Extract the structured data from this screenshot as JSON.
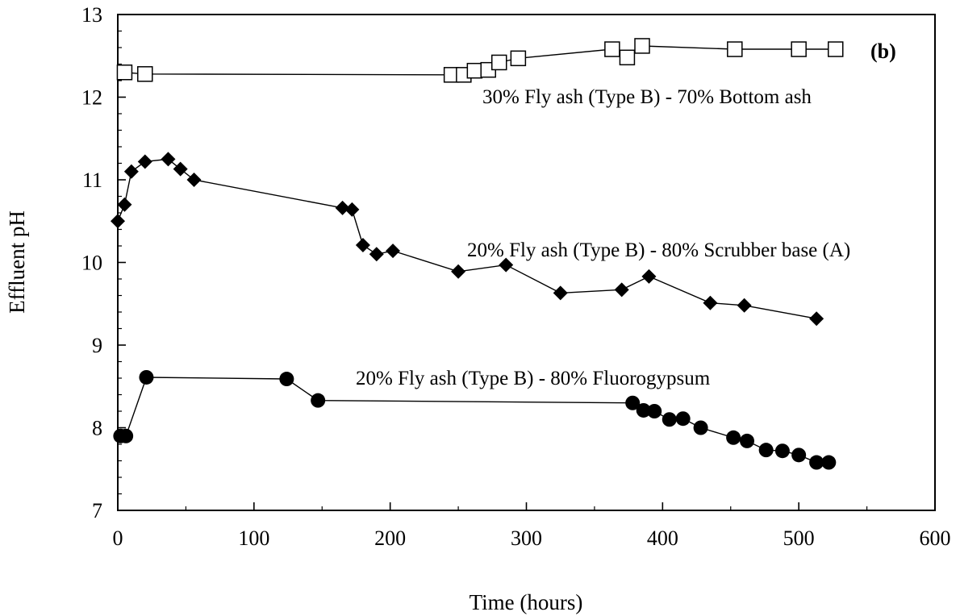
{
  "chart_data": {
    "type": "line",
    "panel_label": "(b)",
    "title": "",
    "xlabel": "Time (hours)",
    "ylabel": "Effluent  pH",
    "xlim": [
      0,
      600
    ],
    "ylim": [
      7,
      13
    ],
    "xticks": [
      0,
      100,
      200,
      300,
      400,
      500,
      600
    ],
    "yticks": [
      7,
      8,
      9,
      10,
      11,
      12,
      13
    ],
    "grid": false,
    "series": [
      {
        "name": "30% Fly ash (Type B) - 70% Bottom ash",
        "marker": "open-square",
        "x": [
          5,
          20,
          245,
          254,
          262,
          272,
          280,
          294,
          363,
          374,
          385,
          453,
          500,
          527
        ],
        "y": [
          12.3,
          12.28,
          12.27,
          12.27,
          12.32,
          12.33,
          12.42,
          12.47,
          12.58,
          12.48,
          12.62,
          12.58,
          12.58,
          12.58
        ]
      },
      {
        "name": "20% Fly ash (Type B) - 80% Scrubber base (A)",
        "marker": "filled-diamond",
        "x": [
          0,
          5,
          10,
          20,
          37,
          46,
          56,
          165,
          172,
          180,
          190,
          202,
          250,
          285,
          325,
          370,
          390,
          435,
          460,
          513
        ],
        "y": [
          10.5,
          10.7,
          11.1,
          11.22,
          11.25,
          11.13,
          11.0,
          10.66,
          10.64,
          10.21,
          10.1,
          10.14,
          9.89,
          9.97,
          9.63,
          9.67,
          9.83,
          9.51,
          9.48,
          9.32
        ]
      },
      {
        "name": "20% Fly ash (Type B) - 80% Fluorogypsum",
        "marker": "filled-circle",
        "x": [
          2,
          6,
          21,
          124,
          147,
          378,
          386,
          394,
          405,
          415,
          428,
          452,
          462,
          476,
          488,
          500,
          513,
          522
        ],
        "y": [
          7.9,
          7.9,
          8.61,
          8.59,
          8.33,
          8.3,
          8.21,
          8.2,
          8.1,
          8.11,
          8.0,
          7.88,
          7.84,
          7.73,
          7.72,
          7.67,
          7.58,
          7.58
        ]
      }
    ]
  },
  "colors": {
    "ink": "#000000",
    "paper": "#ffffff"
  }
}
